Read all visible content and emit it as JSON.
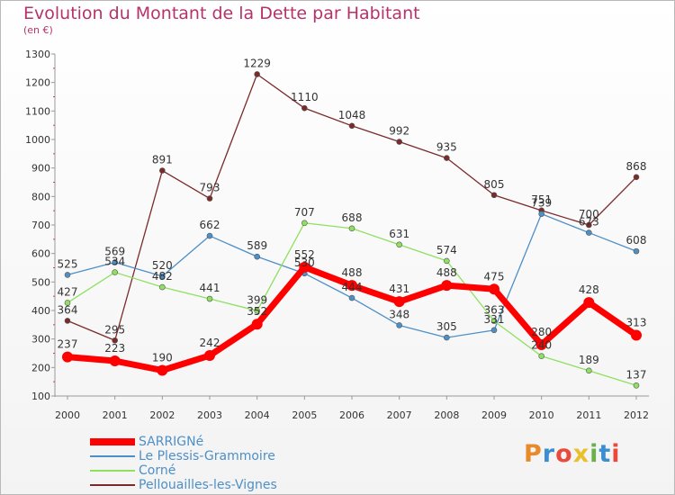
{
  "title": "Evolution du Montant de la Dette par Habitant",
  "subtitle": "(en €)",
  "logo_text": "Proxiti",
  "logo_colors": [
    "#e88a2a",
    "#3b8fd0",
    "#e84b3c",
    "#e8c02a",
    "#6ab04c",
    "#3b8fd0",
    "#e84b3c"
  ],
  "chart_data": {
    "type": "line",
    "title": "Evolution du Montant de la Dette par Habitant",
    "ylabel": "(en €)",
    "x": [
      "2000",
      "2001",
      "2002",
      "2003",
      "2004",
      "2005",
      "2006",
      "2007",
      "2008",
      "2009",
      "2010",
      "2011",
      "2012"
    ],
    "ylim": [
      100,
      1300
    ],
    "yticks": [
      100,
      200,
      300,
      400,
      500,
      600,
      700,
      800,
      900,
      1000,
      1100,
      1200,
      1300
    ],
    "grid": false,
    "legend": "bottom-left",
    "series": [
      {
        "name": "SARRIGNé",
        "color": "#ff0000",
        "values": [
          237,
          223,
          190,
          242,
          352,
          552,
          488,
          431,
          488,
          475,
          280,
          428,
          313
        ]
      },
      {
        "name": "Le Plessis-Grammoire",
        "color": "#4d8fc7",
        "values": [
          525,
          569,
          520,
          662,
          589,
          530,
          444,
          348,
          305,
          331,
          739,
          673,
          608
        ]
      },
      {
        "name": "Corné",
        "color": "#8fe060",
        "values": [
          427,
          534,
          482,
          441,
          399,
          707,
          688,
          631,
          574,
          363,
          240,
          189,
          137
        ]
      },
      {
        "name": "Pellouailles-les-Vignes",
        "color": "#7b2a2a",
        "values": [
          364,
          295,
          891,
          793,
          1229,
          1110,
          1048,
          992,
          935,
          805,
          751,
          700,
          868
        ]
      }
    ]
  }
}
